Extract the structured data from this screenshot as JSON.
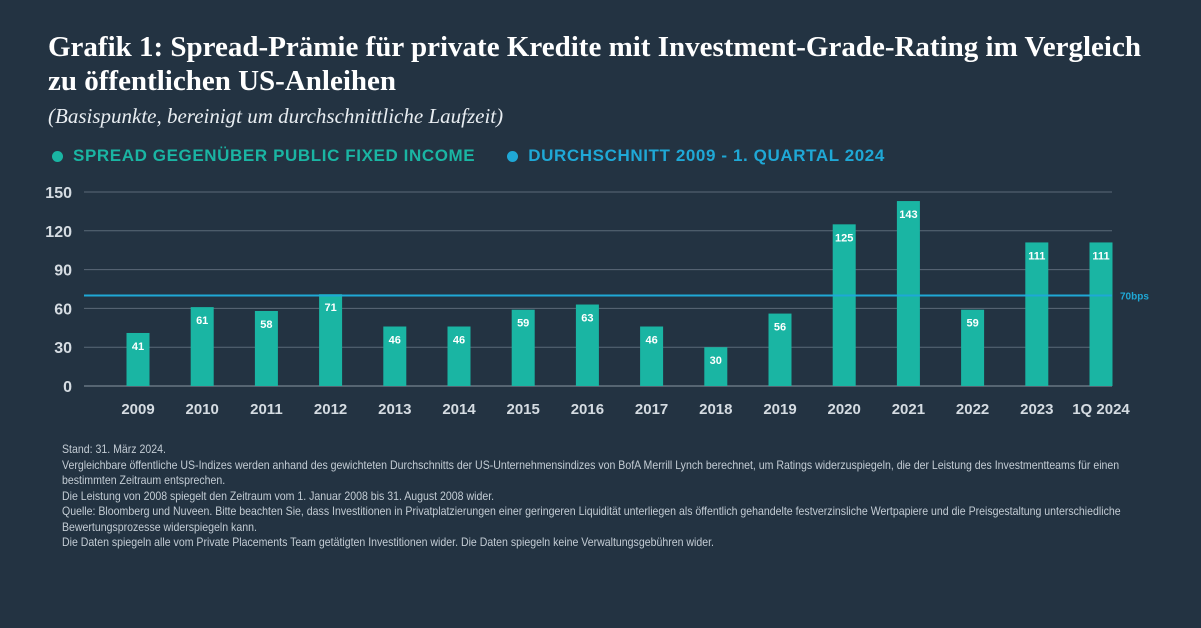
{
  "title": "Grafik 1: Spread-Prämie für private Kredite mit Investment-Grade-Rating im Vergleich zu öffentlichen US-Anleihen",
  "subtitle": "(Basispunkte, bereinigt um durchschnittliche Laufzeit)",
  "legend": [
    {
      "label": "SPREAD GEGENÜBER PUBLIC FIXED INCOME",
      "color": "#1ab5a3"
    },
    {
      "label": "DURCHSCHNITT 2009 - 1. QUARTAL 2024",
      "color": "#1fa8d6"
    }
  ],
  "chart_data": {
    "type": "bar",
    "categories": [
      "2009",
      "2010",
      "2011",
      "2012",
      "2013",
      "2014",
      "2015",
      "2016",
      "2017",
      "2018",
      "2019",
      "2020",
      "2021",
      "2022",
      "2023",
      "1Q 2024"
    ],
    "values": [
      41,
      61,
      58,
      71,
      46,
      46,
      59,
      63,
      46,
      30,
      56,
      125,
      143,
      59,
      111,
      111
    ],
    "yticks": [
      0,
      30,
      60,
      90,
      120,
      150
    ],
    "ylim": [
      0,
      150
    ],
    "average": 70,
    "average_label": "70bps",
    "bar_color": "#1ab5a3",
    "avg_color": "#1fa8d6",
    "grid": true
  },
  "notes": [
    "Stand: 31. März 2024.",
    "Vergleichbare öffentliche US-Indizes werden anhand des gewichteten Durchschnitts der US-Unternehmensindizes von BofA Merrill Lynch berechnet, um Ratings widerzuspiegeln, die der Leistung des Investmentteams für einen bestimmten Zeitraum entsprechen.",
    "Die Leistung von 2008 spiegelt den Zeitraum vom 1. Januar 2008 bis 31. August 2008 wider.",
    "Quelle: Bloomberg und Nuveen. Bitte beachten Sie, dass Investitionen in Privatplatzierungen einer geringeren Liquidität unterliegen als öffentlich gehandelte festverzinsliche Wertpapiere und die Preisgestaltung unterschiedliche Bewertungsprozesse widerspiegeln kann.",
    "Die Daten spiegeln alle vom Private Placements Team getätigten Investitionen wider. Die Daten spiegeln keine Verwaltungsgebühren wider."
  ]
}
